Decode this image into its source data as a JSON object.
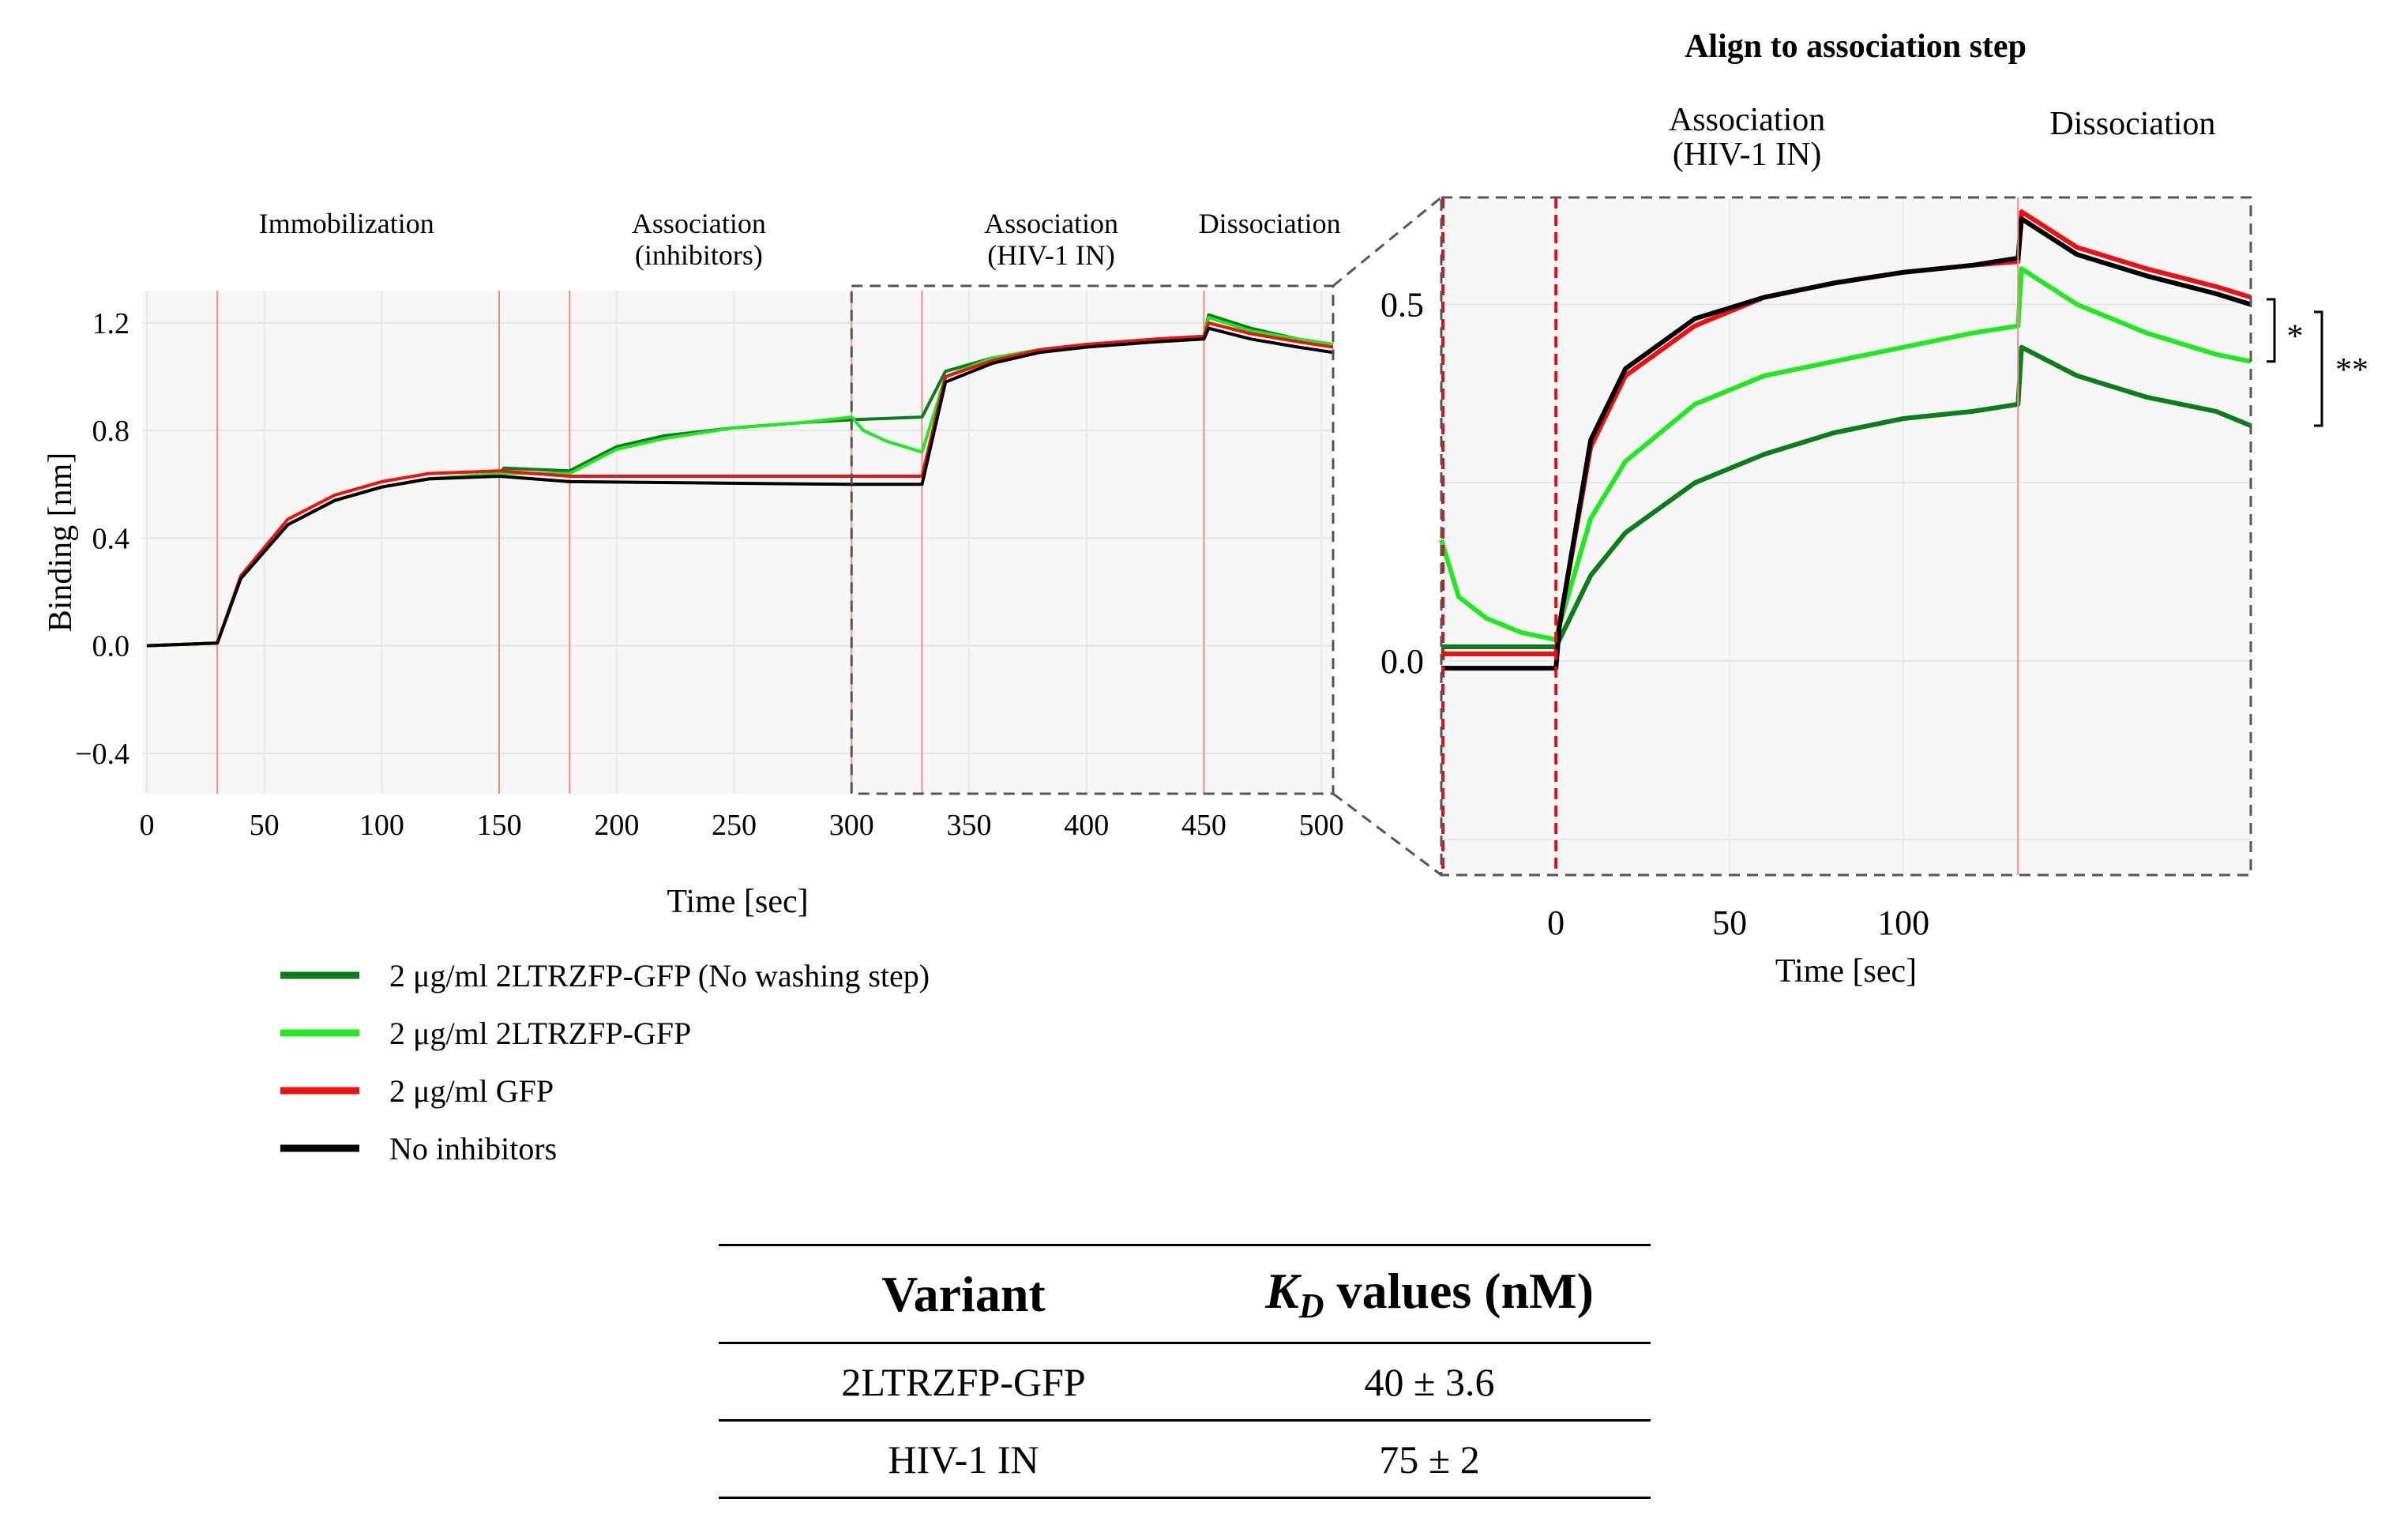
{
  "chart_data": [
    {
      "type": "line",
      "name": "full-sensorgram",
      "xlabel": "Time [sec]",
      "ylabel": "Binding [nm]",
      "xlim": [
        -2,
        505
      ],
      "ylim": [
        -0.55,
        1.32
      ],
      "x_ticks": [
        0,
        50,
        100,
        150,
        200,
        250,
        300,
        350,
        400,
        450,
        500
      ],
      "y_ticks": [
        -0.4,
        0.0,
        0.4,
        0.8,
        1.2
      ],
      "y_tick_labels": [
        "−0.4",
        "0.0",
        "0.4",
        "0.8",
        "1.2"
      ],
      "step_boundaries": [
        30,
        150,
        180,
        300,
        330,
        450
      ],
      "phases": [
        {
          "label": "Immobilization",
          "x": 85
        },
        {
          "label": "Association\n(inhibitors)",
          "x": 235
        },
        {
          "label": "Association\n(HIV-1 IN)",
          "x": 385
        },
        {
          "label": "Dissociation",
          "x": 478
        }
      ],
      "zoom_box_x": [
        300,
        505
      ],
      "series": [
        {
          "name": "2 μg/ml 2LTRZFP-GFP (No washing step)",
          "color": "#0b7d1b",
          "x": [
            0,
            30,
            40,
            60,
            80,
            100,
            120,
            150,
            152,
            180,
            200,
            220,
            250,
            280,
            300,
            330,
            340,
            360,
            380,
            400,
            430,
            450,
            452,
            470,
            490,
            505
          ],
          "y": [
            0.0,
            0.01,
            0.25,
            0.45,
            0.54,
            0.59,
            0.62,
            0.64,
            0.66,
            0.65,
            0.74,
            0.78,
            0.81,
            0.83,
            0.84,
            0.85,
            1.02,
            1.07,
            1.1,
            1.12,
            1.14,
            1.15,
            1.23,
            1.18,
            1.14,
            1.12
          ]
        },
        {
          "name": "2 μg/ml 2LTRZFP-GFP",
          "color": "#22e822",
          "x": [
            0,
            30,
            40,
            60,
            80,
            100,
            120,
            150,
            180,
            200,
            220,
            250,
            280,
            300,
            305,
            315,
            330,
            340,
            360,
            380,
            400,
            430,
            450,
            452,
            470,
            490,
            505
          ],
          "y": [
            0.0,
            0.01,
            0.25,
            0.45,
            0.54,
            0.59,
            0.62,
            0.64,
            0.64,
            0.73,
            0.77,
            0.81,
            0.83,
            0.85,
            0.8,
            0.76,
            0.72,
            1.0,
            1.07,
            1.1,
            1.12,
            1.14,
            1.15,
            1.22,
            1.17,
            1.14,
            1.12
          ]
        },
        {
          "name": "2 μg/ml GFP",
          "color": "#ee1111",
          "x": [
            0,
            30,
            40,
            60,
            80,
            100,
            120,
            150,
            180,
            300,
            330,
            340,
            360,
            380,
            400,
            430,
            450,
            452,
            470,
            490,
            505
          ],
          "y": [
            0.0,
            0.01,
            0.26,
            0.47,
            0.56,
            0.61,
            0.64,
            0.65,
            0.63,
            0.63,
            0.63,
            1.0,
            1.06,
            1.1,
            1.12,
            1.14,
            1.15,
            1.2,
            1.16,
            1.13,
            1.11
          ]
        },
        {
          "name": "No inhibitors",
          "color": "#000000",
          "x": [
            0,
            30,
            40,
            60,
            80,
            100,
            120,
            150,
            180,
            300,
            330,
            340,
            360,
            380,
            400,
            430,
            450,
            452,
            470,
            490,
            505
          ],
          "y": [
            0.0,
            0.01,
            0.25,
            0.45,
            0.54,
            0.59,
            0.62,
            0.63,
            0.61,
            0.6,
            0.6,
            0.98,
            1.05,
            1.09,
            1.11,
            1.13,
            1.14,
            1.18,
            1.14,
            1.11,
            1.09
          ]
        }
      ]
    },
    {
      "type": "line",
      "name": "aligned-association",
      "title": "Align to association step",
      "xlabel": "Time [sec]",
      "xlim": [
        -33,
        200
      ],
      "ylim": [
        -0.3,
        0.65
      ],
      "x_ticks": [
        0,
        50,
        100
      ],
      "y_ticks": [
        0.0,
        0.5
      ],
      "y_tick_labels": [
        "0.0",
        "0.5"
      ],
      "step_boundaries": [
        -33,
        0,
        133
      ],
      "phases": [
        {
          "label": "Association\n(HIV-1 IN)",
          "x": 55
        },
        {
          "label": "Dissociation",
          "x": 166
        }
      ],
      "significance": [
        {
          "label": "*",
          "between": [
            "2 μg/ml GFP",
            "2 μg/ml 2LTRZFP-GFP"
          ]
        },
        {
          "label": "**",
          "between": [
            "2 μg/ml GFP",
            "2 μg/ml 2LTRZFP-GFP (No washing step)"
          ]
        }
      ],
      "series": [
        {
          "name": "2 μg/ml 2LTRZFP-GFP (No washing step)",
          "color": "#0b7d1b",
          "x": [
            -33,
            -20,
            -10,
            0,
            1,
            10,
            20,
            40,
            60,
            80,
            100,
            120,
            133,
            134,
            150,
            170,
            190,
            200
          ],
          "y": [
            0.02,
            0.02,
            0.02,
            0.02,
            0.03,
            0.12,
            0.18,
            0.25,
            0.29,
            0.32,
            0.34,
            0.35,
            0.36,
            0.44,
            0.4,
            0.37,
            0.35,
            0.33
          ]
        },
        {
          "name": "2 μg/ml 2LTRZFP-GFP",
          "color": "#22e822",
          "x": [
            -33,
            -28,
            -20,
            -10,
            0,
            1,
            10,
            20,
            40,
            60,
            80,
            100,
            120,
            133,
            134,
            150,
            170,
            190,
            200
          ],
          "y": [
            0.17,
            0.09,
            0.06,
            0.04,
            0.03,
            0.05,
            0.2,
            0.28,
            0.36,
            0.4,
            0.42,
            0.44,
            0.46,
            0.47,
            0.55,
            0.5,
            0.46,
            0.43,
            0.42
          ]
        },
        {
          "name": "2 μg/ml GFP",
          "color": "#ee1111",
          "x": [
            -33,
            -20,
            -10,
            0,
            1,
            10,
            20,
            40,
            60,
            80,
            100,
            120,
            133,
            134,
            150,
            170,
            190,
            200
          ],
          "y": [
            0.01,
            0.01,
            0.01,
            0.01,
            0.05,
            0.3,
            0.4,
            0.47,
            0.51,
            0.53,
            0.545,
            0.555,
            0.56,
            0.63,
            0.58,
            0.55,
            0.525,
            0.51
          ]
        },
        {
          "name": "No inhibitors",
          "color": "#000000",
          "x": [
            -33,
            -20,
            -10,
            0,
            1,
            10,
            20,
            40,
            60,
            80,
            100,
            120,
            133,
            134,
            150,
            170,
            190,
            200
          ],
          "y": [
            -0.01,
            -0.01,
            -0.01,
            -0.01,
            0.05,
            0.31,
            0.41,
            0.48,
            0.51,
            0.53,
            0.545,
            0.555,
            0.565,
            0.62,
            0.57,
            0.54,
            0.515,
            0.5
          ]
        }
      ]
    }
  ],
  "legend": [
    {
      "label": "2 μg/ml 2LTRZFP-GFP (No washing step)",
      "color": "#0b7d1b"
    },
    {
      "label": "2 μg/ml 2LTRZFP-GFP",
      "color": "#22e822"
    },
    {
      "label": "2 μg/ml GFP",
      "color": "#ee1111"
    },
    {
      "label": "No inhibitors",
      "color": "#000000"
    }
  ],
  "table": {
    "header_variant": "Variant",
    "header_kd_symbol": "K",
    "header_kd_subscript": "D",
    "header_kd_rest": " values (nM)",
    "rows": [
      {
        "variant": "2LTRZFP-GFP",
        "kd": "40 ± 3.6"
      },
      {
        "variant": "HIV-1 IN",
        "kd": "75 ± 2"
      }
    ]
  }
}
